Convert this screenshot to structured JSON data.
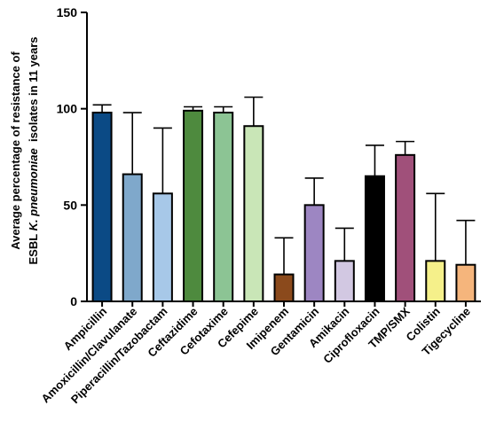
{
  "chart_data": {
    "type": "bar",
    "title": "",
    "xlabel": "",
    "ylabel": {
      "line1": "Average percentage of resistance of",
      "line2_prefix": "ESBL ",
      "line2_italic": "K. pneumoniae",
      "line2_suffix": "  isolates in 11 years"
    },
    "ylim": [
      0,
      150
    ],
    "yticks": [
      "0",
      "50",
      "100",
      "150"
    ],
    "categories": [
      "Ampicillin",
      "Amoxicillin/Clavulanate",
      "Piperacillin/Tazobactam",
      "Ceftazidime",
      "Cefotaxime",
      "Cefepime",
      "Imipenem",
      "Gentamicin",
      "Amikacin",
      "Ciprofloxacin",
      "TMP/SMX",
      "Colistin",
      "Tigecycline"
    ],
    "values": [
      98,
      66,
      56,
      99,
      98,
      91,
      14,
      50,
      21,
      65,
      76,
      21,
      19
    ],
    "errors": [
      4,
      32,
      34,
      2,
      3,
      15,
      19,
      14,
      17,
      16,
      7,
      35,
      23
    ],
    "colors": [
      "#0b4a85",
      "#7fa8cb",
      "#a7c8e8",
      "#4e8a3e",
      "#8cc494",
      "#c9e6b7",
      "#8b4a1c",
      "#9d86c2",
      "#d2c8e2",
      "#000000",
      "#a0507a",
      "#f5f08a",
      "#f5b57c"
    ],
    "grid": false,
    "legend": "none"
  }
}
